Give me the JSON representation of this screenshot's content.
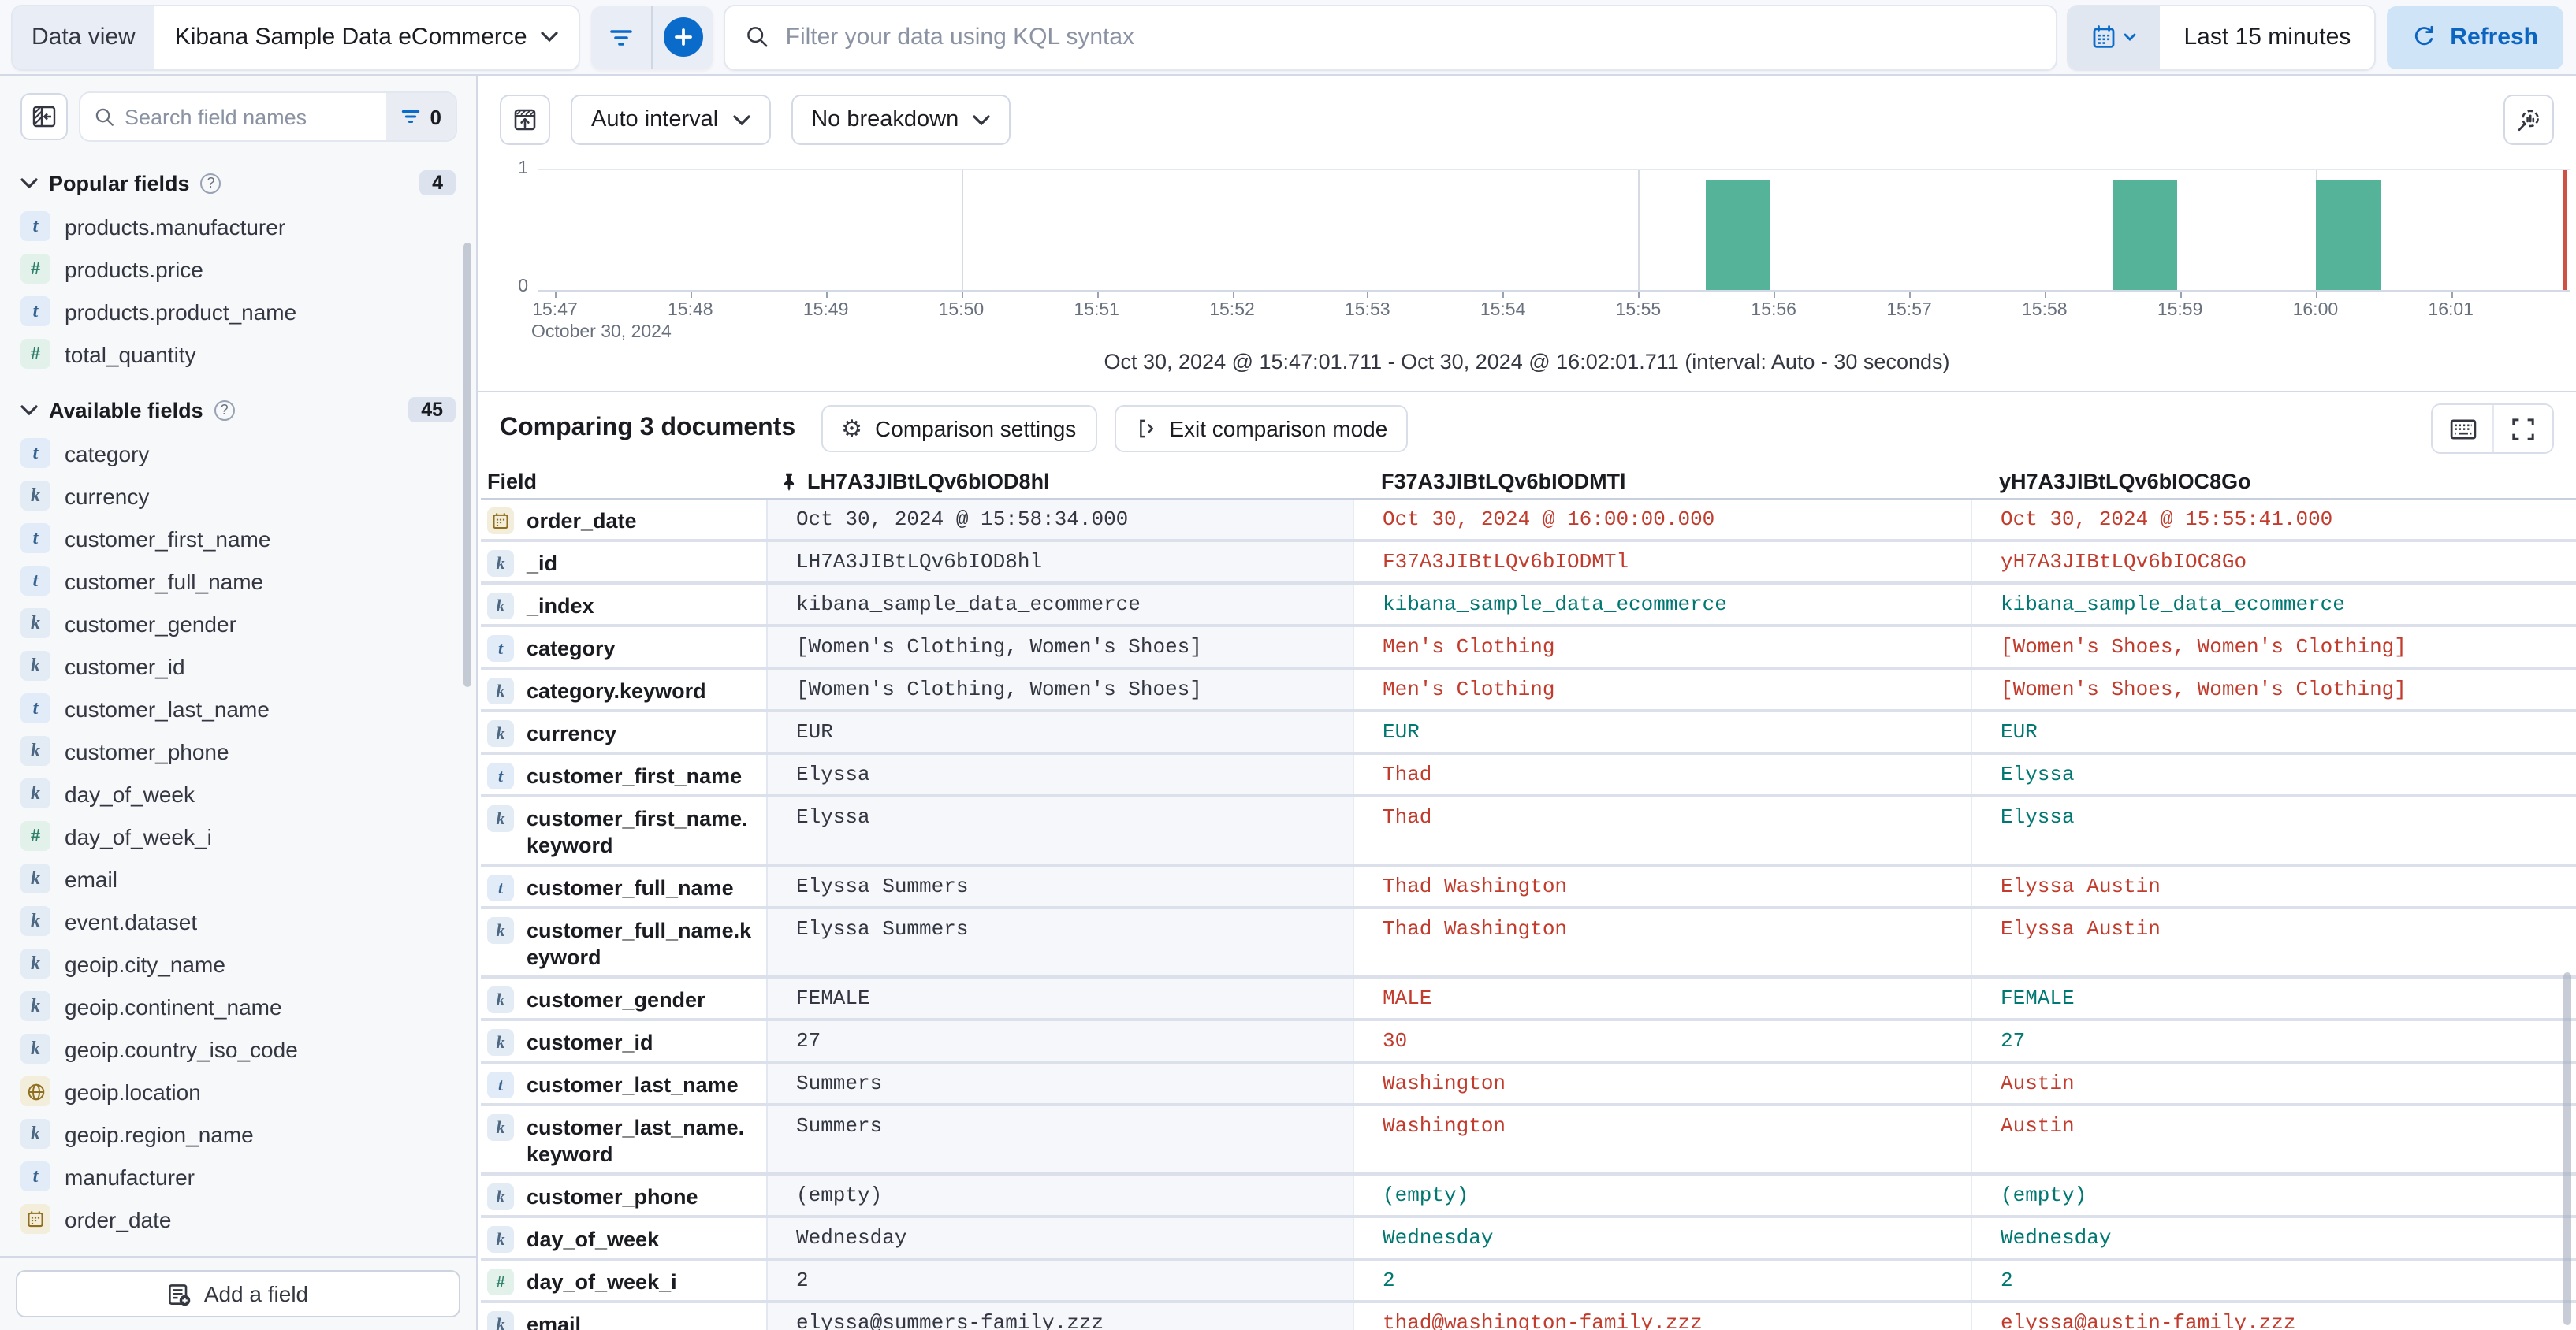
{
  "colors": {
    "accent_blue": "#0b6bcb",
    "refresh_bg": "#d0e4f7",
    "bar_green": "#54b399",
    "match_teal": "#007871",
    "diff_red": "#c23c2e",
    "now_marker_red": "#cf5146",
    "pinned_column_bg": "#f5f7fb"
  },
  "topbar": {
    "data_view_label": "Data view",
    "data_view_value": "Kibana Sample Data eCommerce",
    "kql_placeholder": "Filter your data using KQL syntax",
    "time_range": "Last 15 minutes",
    "refresh_label": "Refresh"
  },
  "sidebar": {
    "search_placeholder": "Search field names",
    "filter_count": "0",
    "popular_label": "Popular fields",
    "popular_count": "4",
    "available_label": "Available fields",
    "available_count": "45",
    "add_field_label": "Add a field",
    "popular_items": [
      {
        "name": "products.manufacturer",
        "type": "text"
      },
      {
        "name": "products.price",
        "type": "number"
      },
      {
        "name": "products.product_name",
        "type": "text"
      },
      {
        "name": "total_quantity",
        "type": "number"
      }
    ],
    "available_items": [
      {
        "name": "category",
        "type": "text"
      },
      {
        "name": "currency",
        "type": "keyword"
      },
      {
        "name": "customer_first_name",
        "type": "text"
      },
      {
        "name": "customer_full_name",
        "type": "text"
      },
      {
        "name": "customer_gender",
        "type": "keyword"
      },
      {
        "name": "customer_id",
        "type": "keyword"
      },
      {
        "name": "customer_last_name",
        "type": "text"
      },
      {
        "name": "customer_phone",
        "type": "keyword"
      },
      {
        "name": "day_of_week",
        "type": "keyword"
      },
      {
        "name": "day_of_week_i",
        "type": "number"
      },
      {
        "name": "email",
        "type": "keyword"
      },
      {
        "name": "event.dataset",
        "type": "keyword"
      },
      {
        "name": "geoip.city_name",
        "type": "keyword"
      },
      {
        "name": "geoip.continent_name",
        "type": "keyword"
      },
      {
        "name": "geoip.country_iso_code",
        "type": "keyword"
      },
      {
        "name": "geoip.location",
        "type": "geo"
      },
      {
        "name": "geoip.region_name",
        "type": "keyword"
      },
      {
        "name": "manufacturer",
        "type": "text"
      },
      {
        "name": "order_date",
        "type": "date"
      }
    ]
  },
  "chart_controls": {
    "interval_label": "Auto interval",
    "breakdown_label": "No breakdown"
  },
  "chart_caption": "Oct 30, 2024 @ 15:47:01.711 - Oct 30, 2024 @ 16:02:01.711 (interval: Auto - 30 seconds)",
  "chart_data": {
    "type": "bar",
    "x": [
      "15:55:30",
      "15:58:30",
      "16:00:00"
    ],
    "values": [
      1,
      1,
      1
    ],
    "interval": "30 seconds",
    "x_ticks": [
      "15:47",
      "15:48",
      "15:49",
      "15:50",
      "15:51",
      "15:52",
      "15:53",
      "15:54",
      "15:55",
      "15:56",
      "15:57",
      "15:58",
      "15:59",
      "16:00",
      "16:01"
    ],
    "x_date_label": "October 30, 2024",
    "yticks": [
      0,
      1
    ],
    "ylim": [
      0,
      1
    ],
    "xlim": [
      "15:47:01.711",
      "16:02:01.711"
    ],
    "major_gridlines": [
      "15:50",
      "15:55",
      "16:00"
    ],
    "now_marker": "16:02",
    "grid": true,
    "legend": false
  },
  "comparison": {
    "title": "Comparing 3 documents",
    "settings_label": "Comparison settings",
    "exit_label": "Exit comparison mode",
    "table": {
      "field_header": "Field",
      "doc_ids": [
        "LH7A3JIBtLQv6bIOD8hl",
        "F37A3JIBtLQv6bIODMTl",
        "yH7A3JIBtLQv6bIOC8Go"
      ],
      "rows": [
        {
          "field": "order_date",
          "type": "date",
          "pinned": "Oct 30, 2024 @ 15:58:34.000",
          "docs": [
            {
              "value": "Oct 30, 2024 @ 16:00:00.000",
              "status": "diff"
            },
            {
              "value": "Oct 30, 2024 @ 15:55:41.000",
              "status": "diff"
            }
          ]
        },
        {
          "field": "_id",
          "type": "keyword",
          "pinned": "LH7A3JIBtLQv6bIOD8hl",
          "docs": [
            {
              "value": "F37A3JIBtLQv6bIODMTl",
              "status": "diff"
            },
            {
              "value": "yH7A3JIBtLQv6bIOC8Go",
              "status": "diff"
            }
          ]
        },
        {
          "field": "_index",
          "type": "keyword",
          "pinned": "kibana_sample_data_ecommerce",
          "docs": [
            {
              "value": "kibana_sample_data_ecommerce",
              "status": "match"
            },
            {
              "value": "kibana_sample_data_ecommerce",
              "status": "match"
            }
          ]
        },
        {
          "field": "category",
          "type": "text",
          "pinned": "[Women's Clothing, Women's Shoes]",
          "docs": [
            {
              "value": "Men's Clothing",
              "status": "diff"
            },
            {
              "value": "[Women's Shoes, Women's Clothing]",
              "status": "diff"
            }
          ]
        },
        {
          "field": "category.keyword",
          "type": "keyword",
          "pinned": "[Women's Clothing, Women's Shoes]",
          "docs": [
            {
              "value": "Men's Clothing",
              "status": "diff"
            },
            {
              "value": "[Women's Shoes, Women's Clothing]",
              "status": "diff"
            }
          ]
        },
        {
          "field": "currency",
          "type": "keyword",
          "pinned": "EUR",
          "docs": [
            {
              "value": "EUR",
              "status": "match"
            },
            {
              "value": "EUR",
              "status": "match"
            }
          ]
        },
        {
          "field": "customer_first_name",
          "type": "text",
          "pinned": "Elyssa",
          "docs": [
            {
              "value": "Thad",
              "status": "diff"
            },
            {
              "value": "Elyssa",
              "status": "match"
            }
          ]
        },
        {
          "field": "customer_first_name.keyword",
          "type": "keyword",
          "pinned": "Elyssa",
          "docs": [
            {
              "value": "Thad",
              "status": "diff"
            },
            {
              "value": "Elyssa",
              "status": "match"
            }
          ]
        },
        {
          "field": "customer_full_name",
          "type": "text",
          "pinned": "Elyssa Summers",
          "docs": [
            {
              "value": "Thad Washington",
              "status": "diff"
            },
            {
              "value": "Elyssa Austin",
              "status": "diff"
            }
          ]
        },
        {
          "field": "customer_full_name.keyword",
          "type": "keyword",
          "pinned": "Elyssa Summers",
          "docs": [
            {
              "value": "Thad Washington",
              "status": "diff"
            },
            {
              "value": "Elyssa Austin",
              "status": "diff"
            }
          ]
        },
        {
          "field": "customer_gender",
          "type": "keyword",
          "pinned": "FEMALE",
          "docs": [
            {
              "value": "MALE",
              "status": "diff"
            },
            {
              "value": "FEMALE",
              "status": "match"
            }
          ]
        },
        {
          "field": "customer_id",
          "type": "keyword",
          "pinned": "27",
          "docs": [
            {
              "value": "30",
              "status": "diff"
            },
            {
              "value": "27",
              "status": "match"
            }
          ]
        },
        {
          "field": "customer_last_name",
          "type": "text",
          "pinned": "Summers",
          "docs": [
            {
              "value": "Washington",
              "status": "diff"
            },
            {
              "value": "Austin",
              "status": "diff"
            }
          ]
        },
        {
          "field": "customer_last_name.keyword",
          "type": "keyword",
          "pinned": "Summers",
          "docs": [
            {
              "value": "Washington",
              "status": "diff"
            },
            {
              "value": "Austin",
              "status": "diff"
            }
          ]
        },
        {
          "field": "customer_phone",
          "type": "keyword",
          "pinned": "(empty)",
          "docs": [
            {
              "value": "(empty)",
              "status": "match"
            },
            {
              "value": "(empty)",
              "status": "match"
            }
          ]
        },
        {
          "field": "day_of_week",
          "type": "keyword",
          "pinned": "Wednesday",
          "docs": [
            {
              "value": "Wednesday",
              "status": "match"
            },
            {
              "value": "Wednesday",
              "status": "match"
            }
          ]
        },
        {
          "field": "day_of_week_i",
          "type": "number",
          "pinned": "2",
          "docs": [
            {
              "value": "2",
              "status": "match"
            },
            {
              "value": "2",
              "status": "match"
            }
          ]
        },
        {
          "field": "email",
          "type": "keyword",
          "pinned": "elyssa@summers-family.zzz",
          "docs": [
            {
              "value": "thad@washington-family.zzz",
              "status": "diff"
            },
            {
              "value": "elyssa@austin-family.zzz",
              "status": "diff"
            }
          ]
        }
      ]
    }
  }
}
